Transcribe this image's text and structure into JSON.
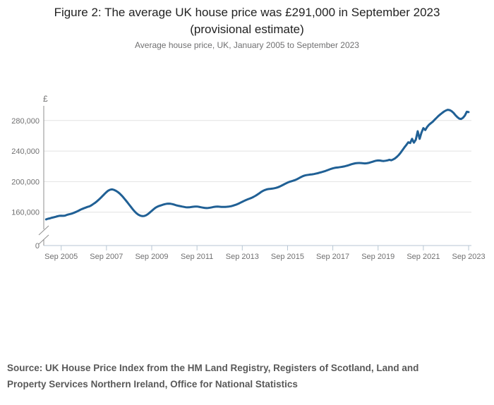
{
  "header": {
    "title_line1": "Figure 2: The average UK house price was £291,000 in September 2023",
    "title_line2": "(provisional estimate)",
    "subtitle": "Average house price, UK, January 2005 to September 2023"
  },
  "source": {
    "line1": "Source: UK House Price Index from the HM Land Registry, Registers of Scotland, Land and",
    "line2": "Property Services Northern Ireland, Office for National Statistics"
  },
  "colors": {
    "line": "#206095",
    "grid": "#e2e2e2",
    "y_axis": "#8f8f8f",
    "x_axis": "#b7c6d3",
    "tick_text": "#707071",
    "title_text": "#222222",
    "source_text": "#595959"
  },
  "chart_data": {
    "type": "line",
    "title": "Figure 2: The average UK house price was £291,000 in September 2023 (provisional estimate)",
    "subtitle": "Average house price, UK, January 2005 to September 2023",
    "unit_label": "£",
    "grid": "horizontal",
    "legend": "none",
    "y_axis_break": true,
    "y_zero_label": "0",
    "y_tick_values": [
      160,
      200,
      240,
      280
    ],
    "y_tick_labels": [
      "160,000",
      "200,000",
      "240,000",
      "280,000"
    ],
    "x_tick_labels": [
      "Sep 2005",
      "Sep 2007",
      "Sep 2009",
      "Sep 2011",
      "Sep 2013",
      "Sep 2015",
      "Sep 2017",
      "Sep 2019",
      "Sep 2021",
      "Sep 2023"
    ],
    "x_range": [
      "Jan 2005",
      "Sep 2023"
    ],
    "frequency": "monthly",
    "values_unit": "GBP thousands",
    "series": [
      {
        "name": "Average UK house price",
        "values": [
          150.6,
          151.4,
          151.9,
          152.7,
          153.3,
          153.9,
          154.6,
          155.2,
          155.4,
          155.2,
          155.5,
          156.4,
          157.1,
          157.7,
          158.4,
          159.4,
          160.5,
          161.7,
          163.0,
          164.1,
          165.1,
          166.0,
          166.9,
          167.7,
          169.0,
          170.6,
          172.3,
          174.3,
          176.5,
          178.8,
          181.3,
          183.9,
          186.3,
          188.3,
          189.5,
          189.8,
          189.2,
          188.0,
          186.4,
          184.4,
          182.0,
          179.2,
          176.2,
          173.1,
          170.0,
          166.8,
          163.6,
          160.8,
          158.4,
          156.6,
          155.4,
          154.8,
          155.0,
          155.9,
          157.5,
          159.5,
          161.7,
          163.9,
          165.8,
          167.2,
          168.2,
          169.0,
          169.8,
          170.5,
          171.0,
          171.2,
          171.0,
          170.5,
          169.8,
          169.0,
          168.4,
          167.9,
          167.4,
          166.9,
          166.5,
          166.3,
          166.4,
          166.7,
          167.1,
          167.4,
          167.4,
          167.0,
          166.5,
          166.0,
          165.6,
          165.4,
          165.5,
          165.9,
          166.4,
          166.9,
          167.2,
          167.3,
          167.1,
          166.9,
          166.8,
          166.9,
          167.1,
          167.4,
          167.8,
          168.4,
          169.2,
          170.1,
          171.2,
          172.4,
          173.6,
          174.8,
          175.9,
          176.9,
          177.8,
          178.8,
          180.0,
          181.4,
          183.0,
          184.7,
          186.4,
          187.9,
          189.0,
          189.8,
          190.3,
          190.6,
          190.9,
          191.3,
          191.9,
          192.7,
          193.7,
          194.9,
          196.2,
          197.5,
          198.7,
          199.7,
          200.5,
          201.2,
          202.0,
          203.1,
          204.4,
          205.8,
          207.0,
          207.9,
          208.5,
          208.9,
          209.2,
          209.5,
          209.9,
          210.4,
          211.0,
          211.7,
          212.4,
          213.1,
          213.9,
          214.8,
          215.7,
          216.6,
          217.4,
          218.0,
          218.4,
          218.7,
          219.0,
          219.4,
          219.9,
          220.5,
          221.2,
          222.0,
          222.8,
          223.5,
          224.0,
          224.3,
          224.4,
          224.3,
          224.0,
          223.8,
          224.0,
          224.5,
          225.2,
          226.0,
          226.8,
          227.4,
          227.7,
          227.6,
          227.2,
          227.0,
          227.3,
          227.8,
          228.5,
          228.0,
          229.0,
          230.5,
          232.5,
          235.0,
          238.0,
          241.5,
          245.0,
          248.0,
          251.5,
          250.5,
          256.0,
          251.0,
          255.0,
          266.0,
          256.0,
          264.0,
          270.0,
          267.5,
          271.5,
          274.5,
          276.5,
          278.5,
          281.0,
          283.5,
          286.0,
          288.0,
          290.0,
          291.8,
          293.2,
          294.0,
          293.6,
          292.2,
          290.0,
          287.0,
          284.5,
          282.5,
          282.0,
          283.5,
          286.5,
          291.5,
          291.0
        ]
      }
    ]
  }
}
